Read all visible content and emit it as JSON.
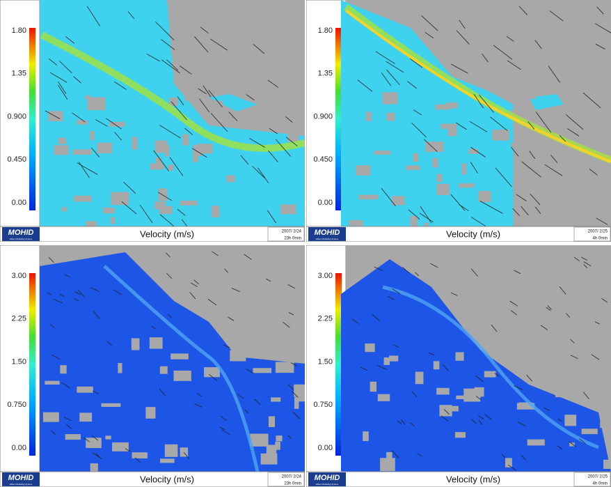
{
  "panels": [
    {
      "colorbar_ticks": [
        "1.80",
        "1.35",
        "0.900",
        "0.450",
        "0.00"
      ],
      "logo": "MOHID",
      "logo_subtitle": "Water Modelling System",
      "title": "Velocity (m/s)",
      "date": "2007/ 2/24",
      "time": "23h 0min"
    },
    {
      "colorbar_ticks": [
        "1.80",
        "1.35",
        "0.900",
        "0.450",
        "0.00"
      ],
      "logo": "MOHID",
      "logo_subtitle": "Water Modelling System",
      "title": "Velocity (m/s)",
      "date": "2007/ 2/25",
      "time": "4h 0min"
    },
    {
      "colorbar_ticks": [
        "3.00",
        "2.25",
        "1.50",
        "0.750",
        "0.00"
      ],
      "logo": "MOHID",
      "logo_subtitle": "Water Modelling System",
      "title": "Velocity (m/s)",
      "date": "2007/ 2/24",
      "time": "23h 0min"
    },
    {
      "colorbar_ticks": [
        "3.00",
        "2.25",
        "1.50",
        "0.750",
        "0.00"
      ],
      "logo": "MOHID",
      "logo_subtitle": "Water Modelling System",
      "title": "Velocity (m/s)",
      "date": "2007/ 2/25",
      "time": "4h 0min"
    }
  ]
}
